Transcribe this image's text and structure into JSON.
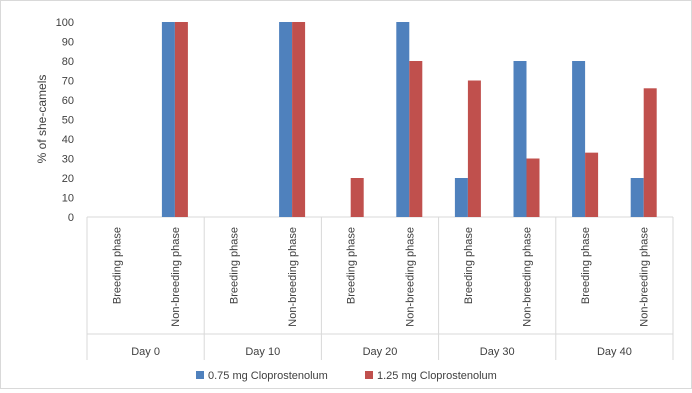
{
  "chart_data": {
    "type": "bar",
    "ylabel": "% of she-camels",
    "ylim": [
      0,
      100
    ],
    "yticks": [
      0,
      10,
      20,
      30,
      40,
      50,
      60,
      70,
      80,
      90,
      100
    ],
    "grid": false,
    "legend_position": "bottom",
    "groups": [
      "Day 0",
      "Day 10",
      "Day 20",
      "Day 30",
      "Day 40"
    ],
    "subcategories": [
      "Breeding phase",
      "Non-breeding phase"
    ],
    "categories": [
      "Day 0 | Breeding phase",
      "Day 0 | Non-breeding phase",
      "Day 10 | Breeding phase",
      "Day 10 | Non-breeding phase",
      "Day 20 | Breeding phase",
      "Day 20 | Non-breeding phase",
      "Day 30 | Breeding phase",
      "Day 30 | Non-breeding phase",
      "Day 40 | Breeding phase",
      "Day 40 | Non-breeding phase"
    ],
    "series": [
      {
        "name": "0.75 mg Cloprostenolum",
        "color": "#4f81bd",
        "values": [
          0,
          100,
          0,
          100,
          0,
          100,
          20,
          80,
          80,
          20
        ]
      },
      {
        "name": "1.25 mg Cloprostenolum",
        "color": "#c0504d",
        "values": [
          0,
          100,
          0,
          100,
          20,
          80,
          70,
          30,
          33,
          66
        ]
      }
    ]
  }
}
